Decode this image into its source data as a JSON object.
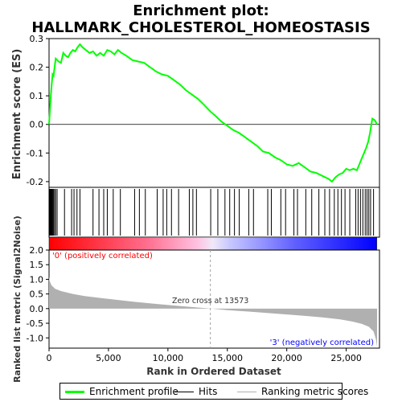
{
  "chart_data": {
    "type": "line",
    "title": "Enrichment plot: HALLMARK_CHOLESTEROL_HOMEOSTASIS",
    "title_lines": [
      "Enrichment plot:",
      "HALLMARK_CHOLESTEROL_HOMEOSTASIS"
    ],
    "top_panel": {
      "ylabel": "Enrichment score (ES)",
      "ylim": [
        -0.22,
        0.3
      ],
      "yticks": [
        0.3,
        0.2,
        0.1,
        0.0,
        -0.1,
        -0.2
      ],
      "ytick_labels": [
        "0.3",
        "0.2",
        "0.1",
        "0.0",
        "-0.1",
        "-0.2"
      ],
      "series": [
        {
          "name": "Enrichment profile",
          "color": "#00ff00",
          "x": [
            0,
            60,
            150,
            220,
            300,
            380,
            470,
            560,
            680,
            800,
            1000,
            1200,
            1400,
            1600,
            1800,
            2000,
            2200,
            2400,
            2600,
            2800,
            3100,
            3400,
            3700,
            4000,
            4300,
            4600,
            4900,
            5200,
            5500,
            5800,
            6100,
            6500,
            7000,
            7500,
            8000,
            8500,
            9000,
            9500,
            10000,
            10500,
            11000,
            11500,
            12000,
            12500,
            13000,
            13573,
            14000,
            14500,
            15000,
            15500,
            16000,
            16500,
            17000,
            17500,
            18000,
            18500,
            19000,
            19500,
            20000,
            20500,
            21000,
            21500,
            22000,
            22500,
            23000,
            23500,
            23800,
            24100,
            24400,
            24700,
            25000,
            25300,
            25600,
            25900,
            26100,
            26300,
            26500,
            26700,
            26850,
            27000,
            27200,
            27400,
            27600
          ],
          "y": [
            0.0,
            0.04,
            0.1,
            0.14,
            0.175,
            0.17,
            0.2,
            0.23,
            0.225,
            0.22,
            0.215,
            0.25,
            0.24,
            0.235,
            0.25,
            0.26,
            0.255,
            0.27,
            0.28,
            0.27,
            0.26,
            0.25,
            0.255,
            0.24,
            0.25,
            0.24,
            0.26,
            0.255,
            0.245,
            0.26,
            0.25,
            0.24,
            0.225,
            0.22,
            0.215,
            0.2,
            0.185,
            0.175,
            0.17,
            0.155,
            0.14,
            0.12,
            0.105,
            0.09,
            0.07,
            0.045,
            0.03,
            0.01,
            -0.005,
            -0.02,
            -0.03,
            -0.045,
            -0.06,
            -0.075,
            -0.095,
            -0.1,
            -0.115,
            -0.125,
            -0.14,
            -0.145,
            -0.135,
            -0.15,
            -0.165,
            -0.17,
            -0.18,
            -0.19,
            -0.2,
            -0.185,
            -0.175,
            -0.17,
            -0.155,
            -0.16,
            -0.155,
            -0.16,
            -0.14,
            -0.12,
            -0.1,
            -0.08,
            -0.06,
            -0.03,
            0.02,
            0.015,
            0.0
          ]
        }
      ]
    },
    "hits_x": [
      30,
      70,
      110,
      160,
      200,
      250,
      310,
      380,
      460,
      560,
      680,
      1300,
      1900,
      2100,
      2350,
      2600,
      3700,
      4200,
      4600,
      4900,
      5400,
      6000,
      7200,
      7600,
      8100,
      9100,
      9600,
      9900,
      10300,
      10900,
      11800,
      12100,
      12400,
      13600,
      14200,
      14800,
      15200,
      15600,
      16000,
      16800,
      17200,
      18400,
      18700,
      19500,
      19900,
      20600,
      20900,
      21600,
      22100,
      22700,
      23200,
      23600,
      24000,
      24300,
      24600,
      24900,
      25300,
      25800,
      26000,
      26200,
      26400,
      26600,
      26750,
      26900,
      27050,
      27300
    ],
    "gradient_bar": {
      "stops": [
        {
          "position": 0.0,
          "color": "#ff0000"
        },
        {
          "position": 0.3,
          "color": "#ff6f8f"
        },
        {
          "position": 0.45,
          "color": "#ffc0e0"
        },
        {
          "position": 0.5,
          "color": "#f0e8f8"
        },
        {
          "position": 0.55,
          "color": "#c8c8ff"
        },
        {
          "position": 0.75,
          "color": "#6060ff"
        },
        {
          "position": 1.0,
          "color": "#0000ff"
        }
      ]
    },
    "bottom_panel": {
      "ylabel": "Ranked list metric (Signal2Noise)",
      "ylim": [
        -1.35,
        2.0
      ],
      "yticks": [
        2.0,
        1.5,
        1.0,
        0.5,
        0.0,
        -0.5,
        -1.0
      ],
      "ytick_labels": [
        "2.0",
        "1.5",
        "1.0",
        "0.5",
        "0.0",
        "-0.5",
        "-1.0"
      ],
      "metric_x": [
        0,
        50,
        200,
        500,
        1000,
        2000,
        3000,
        5000,
        7000,
        9000,
        11000,
        13573,
        15000,
        17000,
        19000,
        21000,
        23000,
        24500,
        25500,
        26300,
        26900,
        27300,
        27500,
        27600
      ],
      "metric_y": [
        1.1,
        0.95,
        0.8,
        0.68,
        0.6,
        0.5,
        0.43,
        0.33,
        0.24,
        0.16,
        0.09,
        0.0,
        -0.05,
        -0.11,
        -0.17,
        -0.23,
        -0.3,
        -0.37,
        -0.44,
        -0.52,
        -0.62,
        -0.78,
        -1.05,
        -1.3
      ],
      "fill_color": "#b0b0b0",
      "zero_cross_label": "Zero cross at 13573",
      "zero_cross_x": 13573,
      "positive_label": "'0' (positively correlated)",
      "negative_label": "'3' (negatively correlated)"
    },
    "xlabel": "Rank in Ordered Dataset",
    "xlim": [
      0,
      27800
    ],
    "xticks": [
      0,
      5000,
      10000,
      15000,
      20000,
      25000
    ],
    "xtick_labels": [
      "0",
      "5,000",
      "10,000",
      "15,000",
      "20,000",
      "25,000"
    ],
    "legend": [
      {
        "label": "Enrichment profile",
        "color": "#00ff00"
      },
      {
        "label": "Hits",
        "color": "#000000"
      },
      {
        "label": "Ranking metric scores",
        "color": "#b0b0b0"
      }
    ],
    "colors": {
      "profile": "#00ff00",
      "positive_text": "#ff0000",
      "negative_text": "#0000ff",
      "zero_cross_line": "#a0a0a0"
    }
  }
}
